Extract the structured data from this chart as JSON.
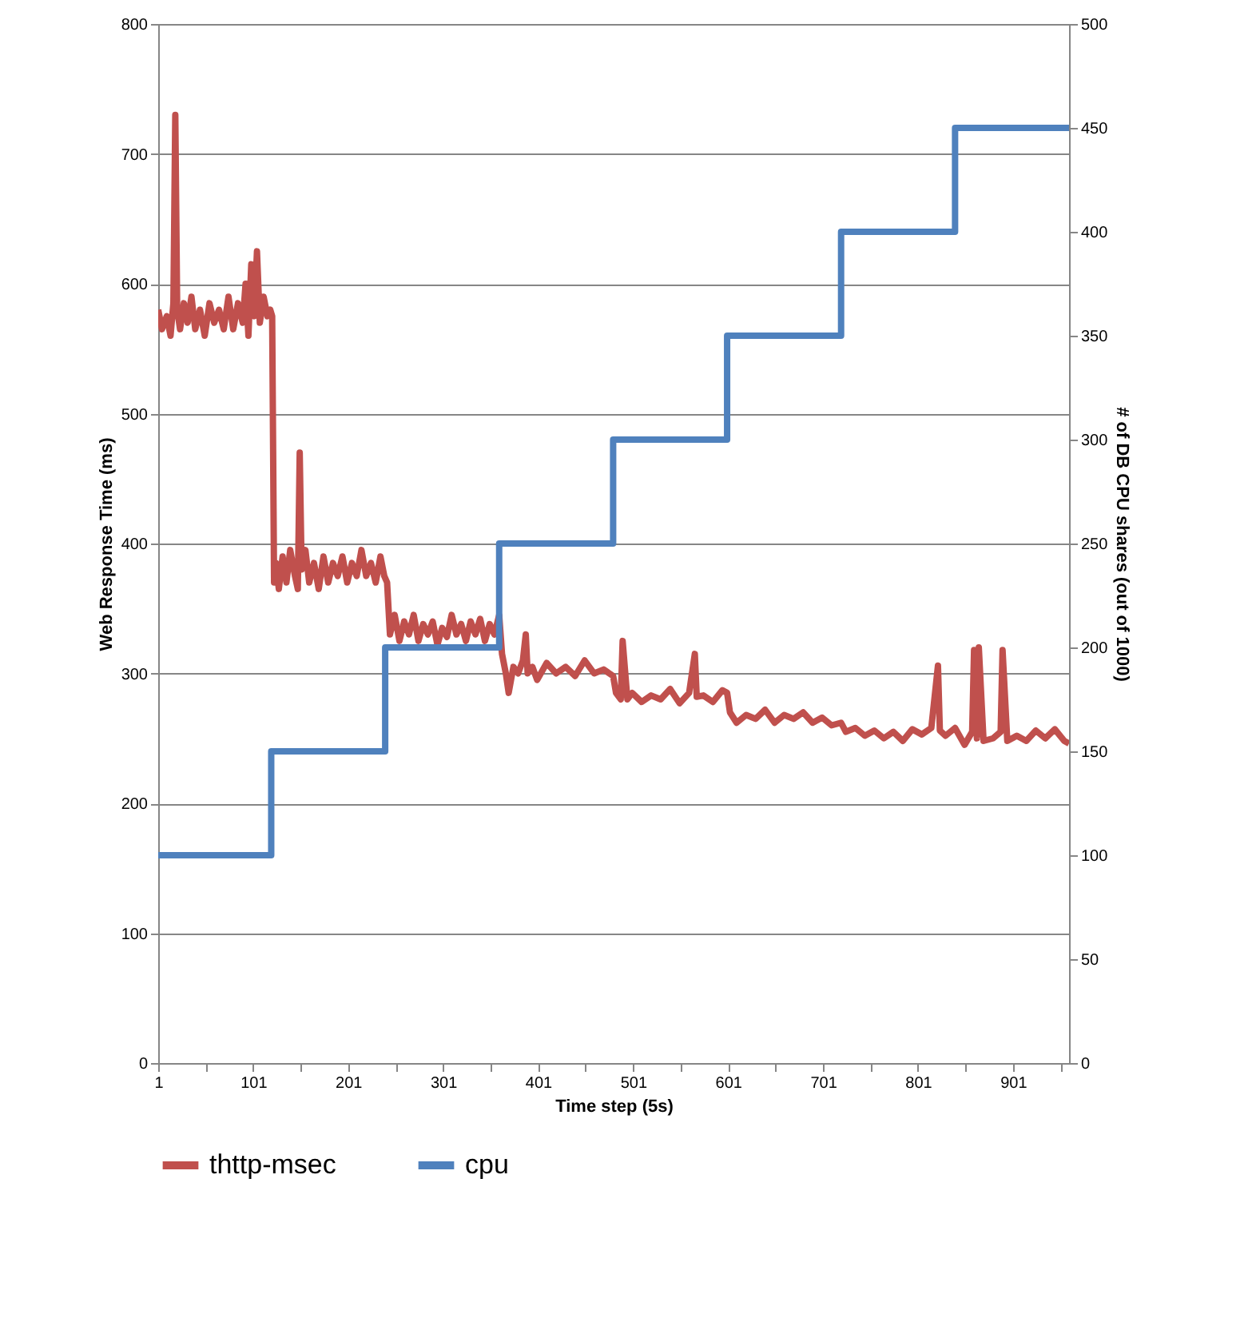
{
  "chart_data": {
    "type": "line",
    "xlabel": "Time step (5s)",
    "ylabel": "Web Response Time (ms)",
    "y2label": "# of DB CPU shares (out of 1000)",
    "xlim": [
      1,
      960
    ],
    "xticks": [
      1,
      {
        "value": 51,
        "label": null
      },
      101,
      {
        "value": 151,
        "label": null
      },
      201,
      {
        "value": 251,
        "label": null
      },
      301,
      {
        "value": 351,
        "label": null
      },
      401,
      {
        "value": 451,
        "label": null
      },
      501,
      {
        "value": 551,
        "label": null
      },
      601,
      {
        "value": 651,
        "label": null
      },
      701,
      {
        "value": 751,
        "label": null
      },
      801,
      {
        "value": 851,
        "label": null
      },
      901,
      {
        "value": 951,
        "label": null
      }
    ],
    "ylim": [
      0,
      800
    ],
    "yticks": [
      0,
      100,
      200,
      300,
      400,
      500,
      600,
      700,
      800
    ],
    "y2lim": [
      0,
      500
    ],
    "y2ticks": [
      0,
      50,
      100,
      150,
      200,
      250,
      300,
      350,
      400,
      450,
      500
    ],
    "grid": "y",
    "legend": "bottom",
    "marker": "none",
    "line_style": "solid",
    "series": [
      {
        "name": "thttp-msec",
        "color": "#c0504d",
        "x": [
          1,
          5,
          10,
          14,
          17,
          19,
          21,
          24,
          28,
          32,
          36,
          40,
          45,
          50,
          55,
          60,
          65,
          70,
          75,
          80,
          85,
          90,
          93,
          96,
          99,
          102,
          105,
          108,
          112,
          116,
          119,
          121,
          123,
          125,
          128,
          132,
          136,
          140,
          145,
          148,
          150,
          152,
          156,
          160,
          165,
          170,
          175,
          180,
          185,
          190,
          195,
          200,
          205,
          210,
          215,
          220,
          225,
          230,
          235,
          239,
          242,
          245,
          250,
          255,
          260,
          265,
          270,
          275,
          280,
          285,
          290,
          295,
          300,
          305,
          310,
          315,
          320,
          325,
          330,
          335,
          340,
          345,
          350,
          355,
          360,
          363,
          367,
          370,
          375,
          380,
          385,
          388,
          390,
          395,
          400,
          410,
          420,
          430,
          440,
          450,
          460,
          470,
          480,
          483,
          488,
          490,
          495,
          500,
          510,
          520,
          530,
          540,
          550,
          560,
          566,
          568,
          575,
          585,
          595,
          600,
          603,
          610,
          620,
          630,
          640,
          650,
          660,
          670,
          680,
          690,
          700,
          710,
          720,
          725,
          735,
          745,
          755,
          765,
          775,
          785,
          795,
          805,
          815,
          822,
          824,
          830,
          840,
          850,
          858,
          860,
          863,
          865,
          870,
          880,
          888,
          890,
          895,
          905,
          915,
          925,
          935,
          945,
          955,
          960
        ],
        "values": [
          580,
          565,
          575,
          560,
          585,
          730,
          580,
          565,
          585,
          570,
          590,
          565,
          580,
          560,
          585,
          570,
          580,
          565,
          590,
          565,
          585,
          570,
          600,
          560,
          615,
          575,
          625,
          570,
          590,
          575,
          580,
          575,
          370,
          385,
          365,
          390,
          370,
          395,
          375,
          365,
          470,
          380,
          395,
          370,
          385,
          365,
          390,
          370,
          385,
          375,
          390,
          370,
          385,
          375,
          395,
          375,
          385,
          370,
          390,
          375,
          370,
          330,
          345,
          325,
          340,
          330,
          345,
          325,
          338,
          330,
          340,
          322,
          335,
          328,
          345,
          330,
          338,
          325,
          340,
          330,
          342,
          325,
          338,
          330,
          345,
          315,
          300,
          285,
          305,
          300,
          310,
          330,
          300,
          305,
          295,
          308,
          300,
          305,
          298,
          310,
          300,
          303,
          298,
          285,
          280,
          325,
          280,
          285,
          278,
          283,
          280,
          288,
          277,
          285,
          315,
          282,
          283,
          278,
          287,
          285,
          270,
          262,
          268,
          265,
          272,
          262,
          268,
          265,
          270,
          262,
          266,
          260,
          262,
          255,
          258,
          252,
          256,
          250,
          255,
          248,
          257,
          253,
          258,
          306,
          256,
          252,
          258,
          245,
          255,
          318,
          250,
          320,
          248,
          250,
          255,
          318,
          248,
          252,
          248,
          256,
          250,
          257,
          248,
          246
        ]
      },
      {
        "name": "cpu",
        "color": "#4f81bd",
        "type": "step",
        "axis": "y2",
        "x": [
          1,
          120,
          240,
          360,
          480,
          600,
          720,
          840,
          960
        ],
        "values": [
          100,
          150,
          200,
          250,
          300,
          350,
          400,
          450,
          450
        ]
      }
    ]
  }
}
